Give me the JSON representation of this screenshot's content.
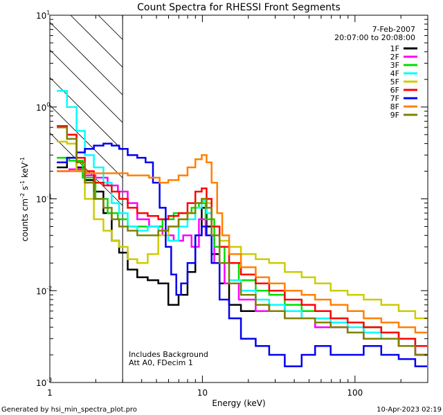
{
  "chart_data": {
    "type": "line",
    "title": "Count Spectra for RHESSI Front Segments",
    "xlabel": "Energy (keV)",
    "ylabel": {
      "base": "counts cm",
      "exp1": "-2",
      "mid": " s",
      "exp2": "-1",
      "tail": " keV",
      "exp3": "-1"
    },
    "xscale": "log",
    "yscale": "log",
    "xlim": [
      1,
      300
    ],
    "ylim": [
      0.001,
      10
    ],
    "x_ticks": [
      {
        "value": 1,
        "label": "1"
      },
      {
        "value": 10,
        "label": "10"
      },
      {
        "value": 100,
        "label": "100"
      }
    ],
    "y_ticks": [
      {
        "value": 0.001,
        "base": "10",
        "exp": "-3"
      },
      {
        "value": 0.01,
        "base": "10",
        "exp": "-2"
      },
      {
        "value": 0.1,
        "base": "10",
        "exp": "-1"
      },
      {
        "value": 1,
        "base": "10",
        "exp": "0"
      },
      {
        "value": 10,
        "base": "10",
        "exp": "1"
      }
    ],
    "hatched_region": {
      "xmin": 1,
      "xmax": 3
    },
    "date": "7-Feb-2007",
    "time_range": "20:07:00 to 20:08:00",
    "annotations": [
      "Includes Background",
      "Att A0, FDecim 1"
    ],
    "legend_position": "top-right",
    "series": [
      {
        "name": "1F",
        "color": "#000000",
        "points": [
          [
            1.2,
            0.22
          ],
          [
            1.4,
            0.28
          ],
          [
            1.6,
            0.22
          ],
          [
            1.8,
            0.16
          ],
          [
            2.1,
            0.12
          ],
          [
            2.4,
            0.07
          ],
          [
            2.7,
            0.035
          ],
          [
            3.0,
            0.026
          ],
          [
            3.5,
            0.017
          ],
          [
            4.0,
            0.014
          ],
          [
            4.8,
            0.013
          ],
          [
            5.5,
            0.012
          ],
          [
            6.5,
            0.007
          ],
          [
            7.5,
            0.009
          ],
          [
            8.5,
            0.016
          ],
          [
            9.5,
            0.04
          ],
          [
            10.3,
            0.08
          ],
          [
            11,
            0.05
          ],
          [
            12,
            0.025
          ],
          [
            14,
            0.012
          ],
          [
            16,
            0.007
          ],
          [
            20,
            0.006
          ],
          [
            25,
            0.006
          ],
          [
            30,
            0.007
          ],
          [
            40,
            0.006
          ],
          [
            50,
            0.005
          ],
          [
            60,
            0.005
          ],
          [
            80,
            0.004
          ],
          [
            100,
            0.0035
          ],
          [
            130,
            0.004
          ],
          [
            170,
            0.003
          ],
          [
            220,
            0.0025
          ],
          [
            280,
            0.002
          ]
        ]
      },
      {
        "name": "2F",
        "color": "#ff00ff",
        "points": [
          [
            1.2,
            0.2
          ],
          [
            1.5,
            0.21
          ],
          [
            1.8,
            0.18
          ],
          [
            2.2,
            0.17
          ],
          [
            2.6,
            0.14
          ],
          [
            3.0,
            0.12
          ],
          [
            3.5,
            0.09
          ],
          [
            4.0,
            0.06
          ],
          [
            5.0,
            0.05
          ],
          [
            6.0,
            0.04
          ],
          [
            7.0,
            0.035
          ],
          [
            8.0,
            0.04
          ],
          [
            9.0,
            0.03
          ],
          [
            10,
            0.06
          ],
          [
            11,
            0.04
          ],
          [
            13,
            0.02
          ],
          [
            15,
            0.012
          ],
          [
            20,
            0.008
          ],
          [
            25,
            0.006
          ],
          [
            30,
            0.006
          ],
          [
            40,
            0.005
          ],
          [
            50,
            0.005
          ],
          [
            60,
            0.004
          ],
          [
            80,
            0.004
          ],
          [
            100,
            0.0035
          ],
          [
            130,
            0.003
          ],
          [
            170,
            0.003
          ],
          [
            220,
            0.0025
          ],
          [
            280,
            0.002
          ]
        ]
      },
      {
        "name": "3F",
        "color": "#00dd00",
        "points": [
          [
            1.2,
            0.28
          ],
          [
            1.5,
            0.26
          ],
          [
            1.8,
            0.17
          ],
          [
            2.2,
            0.1
          ],
          [
            2.6,
            0.07
          ],
          [
            3.0,
            0.06
          ],
          [
            3.5,
            0.05
          ],
          [
            4.0,
            0.05
          ],
          [
            5.0,
            0.05
          ],
          [
            6.0,
            0.06
          ],
          [
            7.0,
            0.07
          ],
          [
            8.0,
            0.07
          ],
          [
            9.0,
            0.08
          ],
          [
            10,
            0.09
          ],
          [
            11,
            0.06
          ],
          [
            13,
            0.03
          ],
          [
            15,
            0.02
          ],
          [
            20,
            0.013
          ],
          [
            25,
            0.01
          ],
          [
            30,
            0.009
          ],
          [
            40,
            0.007
          ],
          [
            50,
            0.006
          ],
          [
            60,
            0.006
          ],
          [
            80,
            0.005
          ],
          [
            100,
            0.0045
          ],
          [
            130,
            0.004
          ],
          [
            170,
            0.0035
          ],
          [
            220,
            0.003
          ],
          [
            280,
            0.0025
          ]
        ]
      },
      {
        "name": "4F",
        "color": "#00ffff",
        "points": [
          [
            1.2,
            1.5
          ],
          [
            1.4,
            1.0
          ],
          [
            1.6,
            0.55
          ],
          [
            1.8,
            0.3
          ],
          [
            2.1,
            0.22
          ],
          [
            2.4,
            0.15
          ],
          [
            2.7,
            0.09
          ],
          [
            3.0,
            0.07
          ],
          [
            3.5,
            0.05
          ],
          [
            4.0,
            0.045
          ],
          [
            4.8,
            0.05
          ],
          [
            5.5,
            0.04
          ],
          [
            6.5,
            0.035
          ],
          [
            7.5,
            0.05
          ],
          [
            8.5,
            0.06
          ],
          [
            9.5,
            0.08
          ],
          [
            10.3,
            0.095
          ],
          [
            11,
            0.07
          ],
          [
            12,
            0.04
          ],
          [
            14,
            0.02
          ],
          [
            16,
            0.013
          ],
          [
            20,
            0.01
          ],
          [
            25,
            0.008
          ],
          [
            30,
            0.007
          ],
          [
            40,
            0.006
          ],
          [
            50,
            0.005
          ],
          [
            60,
            0.005
          ],
          [
            80,
            0.0045
          ],
          [
            100,
            0.004
          ],
          [
            130,
            0.0035
          ],
          [
            170,
            0.003
          ],
          [
            220,
            0.003
          ],
          [
            280,
            0.0025
          ]
        ]
      },
      {
        "name": "5F",
        "color": "#cccc00",
        "points": [
          [
            1.2,
            0.42
          ],
          [
            1.4,
            0.4
          ],
          [
            1.6,
            0.2
          ],
          [
            1.8,
            0.1
          ],
          [
            2.1,
            0.06
          ],
          [
            2.4,
            0.045
          ],
          [
            2.7,
            0.035
          ],
          [
            3.0,
            0.03
          ],
          [
            3.5,
            0.022
          ],
          [
            4.0,
            0.02
          ],
          [
            4.8,
            0.025
          ],
          [
            5.5,
            0.04
          ],
          [
            6.5,
            0.05
          ],
          [
            7.5,
            0.06
          ],
          [
            8.5,
            0.07
          ],
          [
            9.5,
            0.09
          ],
          [
            10.3,
            0.1
          ],
          [
            11,
            0.09
          ],
          [
            12,
            0.05
          ],
          [
            14,
            0.035
          ],
          [
            16,
            0.03
          ],
          [
            20,
            0.025
          ],
          [
            25,
            0.022
          ],
          [
            30,
            0.02
          ],
          [
            40,
            0.016
          ],
          [
            50,
            0.014
          ],
          [
            60,
            0.012
          ],
          [
            80,
            0.01
          ],
          [
            100,
            0.009
          ],
          [
            130,
            0.008
          ],
          [
            170,
            0.007
          ],
          [
            220,
            0.006
          ],
          [
            280,
            0.005
          ]
        ]
      },
      {
        "name": "6F",
        "color": "#ff0000",
        "points": [
          [
            1.2,
            0.62
          ],
          [
            1.4,
            0.5
          ],
          [
            1.6,
            0.28
          ],
          [
            1.8,
            0.2
          ],
          [
            2.1,
            0.15
          ],
          [
            2.4,
            0.14
          ],
          [
            2.7,
            0.12
          ],
          [
            3.0,
            0.1
          ],
          [
            3.5,
            0.08
          ],
          [
            4.0,
            0.07
          ],
          [
            4.8,
            0.065
          ],
          [
            5.5,
            0.06
          ],
          [
            6.5,
            0.065
          ],
          [
            7.5,
            0.07
          ],
          [
            8.5,
            0.09
          ],
          [
            9.5,
            0.12
          ],
          [
            10.3,
            0.13
          ],
          [
            11,
            0.1
          ],
          [
            12,
            0.05
          ],
          [
            14,
            0.03
          ],
          [
            16,
            0.02
          ],
          [
            20,
            0.015
          ],
          [
            25,
            0.012
          ],
          [
            30,
            0.01
          ],
          [
            40,
            0.008
          ],
          [
            50,
            0.007
          ],
          [
            60,
            0.006
          ],
          [
            80,
            0.005
          ],
          [
            100,
            0.0045
          ],
          [
            130,
            0.004
          ],
          [
            170,
            0.0035
          ],
          [
            220,
            0.003
          ],
          [
            280,
            0.0025
          ]
        ]
      },
      {
        "name": "7F",
        "color": "#0000ee",
        "points": [
          [
            1.2,
            0.25
          ],
          [
            1.4,
            0.28
          ],
          [
            1.6,
            0.32
          ],
          [
            1.8,
            0.35
          ],
          [
            2.1,
            0.38
          ],
          [
            2.4,
            0.4
          ],
          [
            2.7,
            0.38
          ],
          [
            3.0,
            0.35
          ],
          [
            3.5,
            0.3
          ],
          [
            4.0,
            0.28
          ],
          [
            4.5,
            0.25
          ],
          [
            5.0,
            0.15
          ],
          [
            5.5,
            0.08
          ],
          [
            6.0,
            0.03
          ],
          [
            6.5,
            0.015
          ],
          [
            7.0,
            0.009
          ],
          [
            7.5,
            0.012
          ],
          [
            8.5,
            0.02
          ],
          [
            9.5,
            0.04
          ],
          [
            10.3,
            0.05
          ],
          [
            11,
            0.04
          ],
          [
            12,
            0.02
          ],
          [
            14,
            0.008
          ],
          [
            16,
            0.005
          ],
          [
            20,
            0.003
          ],
          [
            25,
            0.0025
          ],
          [
            30,
            0.002
          ],
          [
            40,
            0.0015
          ],
          [
            50,
            0.002
          ],
          [
            60,
            0.0025
          ],
          [
            80,
            0.002
          ],
          [
            100,
            0.002
          ],
          [
            130,
            0.0025
          ],
          [
            170,
            0.002
          ],
          [
            220,
            0.0018
          ],
          [
            280,
            0.0015
          ]
        ]
      },
      {
        "name": "8F",
        "color": "#ff8000",
        "points": [
          [
            1.2,
            0.2
          ],
          [
            1.5,
            0.2
          ],
          [
            2.0,
            0.19
          ],
          [
            2.5,
            0.19
          ],
          [
            3.0,
            0.19
          ],
          [
            3.5,
            0.18
          ],
          [
            4.0,
            0.18
          ],
          [
            5.0,
            0.17
          ],
          [
            5.5,
            0.15
          ],
          [
            6.5,
            0.16
          ],
          [
            7.5,
            0.18
          ],
          [
            8.5,
            0.22
          ],
          [
            9.5,
            0.27
          ],
          [
            10.3,
            0.3
          ],
          [
            11,
            0.25
          ],
          [
            12,
            0.15
          ],
          [
            13,
            0.07
          ],
          [
            14,
            0.04
          ],
          [
            16,
            0.025
          ],
          [
            20,
            0.018
          ],
          [
            25,
            0.014
          ],
          [
            30,
            0.012
          ],
          [
            40,
            0.01
          ],
          [
            50,
            0.009
          ],
          [
            60,
            0.008
          ],
          [
            80,
            0.007
          ],
          [
            100,
            0.006
          ],
          [
            130,
            0.005
          ],
          [
            170,
            0.0045
          ],
          [
            220,
            0.004
          ],
          [
            280,
            0.0035
          ]
        ]
      },
      {
        "name": "9F",
        "color": "#808000",
        "points": [
          [
            1.2,
            0.6
          ],
          [
            1.4,
            0.45
          ],
          [
            1.6,
            0.25
          ],
          [
            1.8,
            0.15
          ],
          [
            2.1,
            0.1
          ],
          [
            2.4,
            0.08
          ],
          [
            2.7,
            0.06
          ],
          [
            3.0,
            0.05
          ],
          [
            3.5,
            0.045
          ],
          [
            4.0,
            0.04
          ],
          [
            4.8,
            0.04
          ],
          [
            5.5,
            0.045
          ],
          [
            6.5,
            0.05
          ],
          [
            7.5,
            0.06
          ],
          [
            8.5,
            0.07
          ],
          [
            9.5,
            0.09
          ],
          [
            10.3,
            0.1
          ],
          [
            11,
            0.08
          ],
          [
            12,
            0.04
          ],
          [
            14,
            0.02
          ],
          [
            16,
            0.012
          ],
          [
            20,
            0.009
          ],
          [
            25,
            0.007
          ],
          [
            30,
            0.006
          ],
          [
            40,
            0.005
          ],
          [
            50,
            0.005
          ],
          [
            60,
            0.0045
          ],
          [
            80,
            0.004
          ],
          [
            100,
            0.0035
          ],
          [
            130,
            0.003
          ],
          [
            170,
            0.003
          ],
          [
            220,
            0.0025
          ],
          [
            280,
            0.002
          ]
        ]
      }
    ]
  },
  "footer": {
    "left": "Generated by hsi_min_spectra_plot.pro",
    "right": "10-Apr-2023 02:19"
  }
}
